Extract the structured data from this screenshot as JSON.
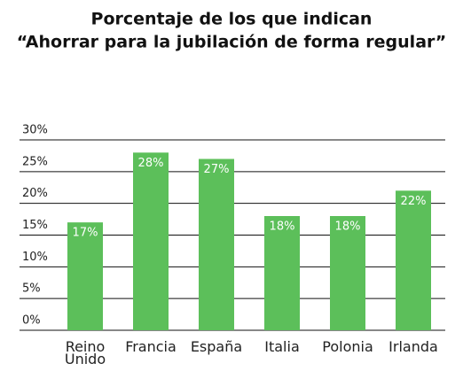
{
  "chart_data": {
    "type": "bar",
    "title": [
      "Porcentaje de los que indican",
      "“Ahorrar para la jubilación de forma regular”"
    ],
    "categories": [
      "Reino Unido",
      "Francia",
      "España",
      "Italia",
      "Polonia",
      "Irlanda"
    ],
    "values": [
      17,
      28,
      27,
      18,
      18,
      22
    ],
    "value_labels": [
      "17%",
      "28%",
      "27%",
      "18%",
      "18%",
      "22%"
    ],
    "color": "#5cbf5a",
    "ylim": [
      0,
      30
    ],
    "yticks": [
      {
        "value": 0,
        "label": "0%"
      },
      {
        "value": 5,
        "label": "5%"
      },
      {
        "value": 10,
        "label": "10%"
      },
      {
        "value": 15,
        "label": "15%"
      },
      {
        "value": 20,
        "label": "20%"
      },
      {
        "value": 25,
        "label": "25%"
      },
      {
        "value": 30,
        "label": "30%"
      }
    ],
    "grid": true
  }
}
